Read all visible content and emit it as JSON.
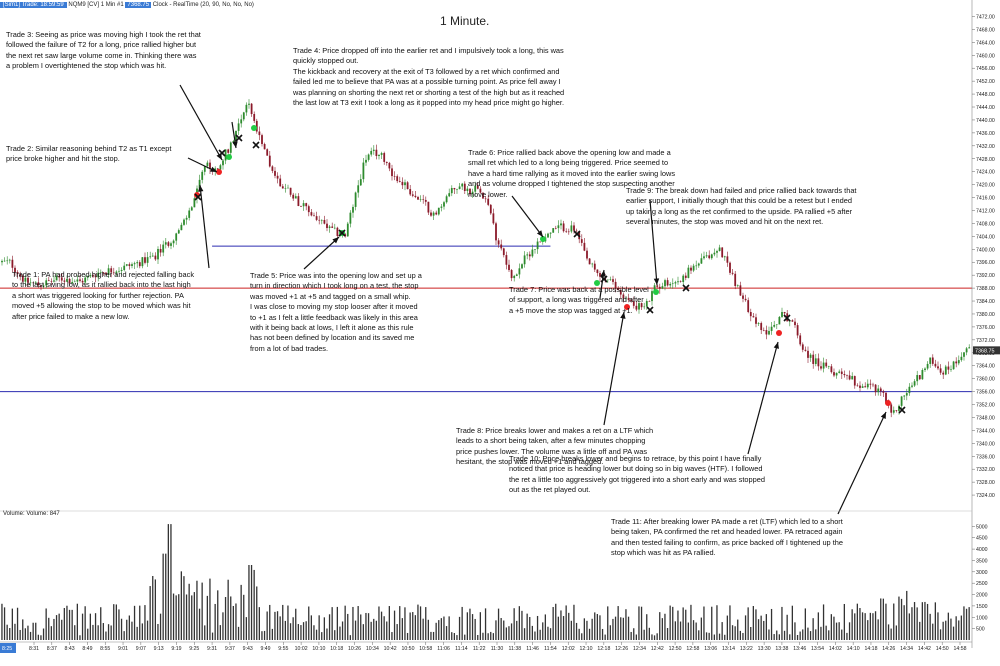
{
  "header": {
    "symbol": "[Sim1] Trade: 18:59:59",
    "instrument": "NQM9 [CV]  1 Min  #1",
    "price_tag": "7368.75",
    "info": "Clock - RealTime   (20, 90, No, No, No)"
  },
  "chart_data": {
    "type": "candlestick",
    "title": "1 Minute.",
    "y_ticks": [
      "7472.00",
      "7468.00",
      "7464.00",
      "7460.00",
      "7456.00",
      "7452.00",
      "7448.00",
      "7444.00",
      "7440.00",
      "7436.00",
      "7432.00",
      "7428.00",
      "7424.00",
      "7420.00",
      "7416.00",
      "7412.00",
      "7408.00",
      "7404.00",
      "7400.00",
      "7396.00",
      "7392.00",
      "7388.00",
      "7384.00",
      "7380.00",
      "7376.00",
      "7372.00",
      "7368.00",
      "7364.00",
      "7360.00",
      "7356.00",
      "7352.00",
      "7348.00",
      "7344.00",
      "7340.00",
      "7336.00",
      "7332.00",
      "7328.00",
      "7324.00"
    ],
    "ylim": [
      7320,
      7474
    ],
    "last_price": "7368.75",
    "x_ticks": [
      "8:31",
      "8:37",
      "8:43",
      "8:49",
      "8:55",
      "9:01",
      "9:07",
      "9:13",
      "9:19",
      "9:25",
      "9:31",
      "9:37",
      "9:43",
      "9:49",
      "9:55",
      "10:02",
      "10:10",
      "10:18",
      "10:26",
      "10:34",
      "10:42",
      "10:50",
      "10:58",
      "11:06",
      "11:14",
      "11:22",
      "11:30",
      "11:38",
      "11:46",
      "11:54",
      "12:02",
      "12:10",
      "12:18",
      "12:26",
      "12:34",
      "12:42",
      "12:50",
      "12:58",
      "13:06",
      "13:14",
      "13:22",
      "13:30",
      "13:38",
      "13:46",
      "13:54",
      "14:02",
      "14:10",
      "14:18",
      "14:26",
      "14:34",
      "14:42",
      "14:50",
      "14:58"
    ],
    "first_tick_label": "8:25",
    "price_path": [
      [
        0,
        7396
      ],
      [
        10,
        7396
      ],
      [
        20,
        7392
      ],
      [
        25,
        7390
      ],
      [
        40,
        7389
      ],
      [
        60,
        7391
      ],
      [
        80,
        7390
      ],
      [
        100,
        7393
      ],
      [
        120,
        7394
      ],
      [
        140,
        7396
      ],
      [
        155,
        7398
      ],
      [
        168,
        7402
      ],
      [
        180,
        7406
      ],
      [
        190,
        7412
      ],
      [
        197,
        7418
      ],
      [
        205,
        7426
      ],
      [
        215,
        7424
      ],
      [
        222,
        7428
      ],
      [
        230,
        7432
      ],
      [
        240,
        7440
      ],
      [
        248,
        7446
      ],
      [
        255,
        7438
      ],
      [
        262,
        7432
      ],
      [
        270,
        7426
      ],
      [
        280,
        7420
      ],
      [
        290,
        7418
      ],
      [
        300,
        7414
      ],
      [
        315,
        7410
      ],
      [
        330,
        7406
      ],
      [
        345,
        7404
      ],
      [
        355,
        7416
      ],
      [
        365,
        7428
      ],
      [
        375,
        7430
      ],
      [
        385,
        7428
      ],
      [
        395,
        7422
      ],
      [
        405,
        7420
      ],
      [
        415,
        7416
      ],
      [
        425,
        7414
      ],
      [
        435,
        7410
      ],
      [
        445,
        7416
      ],
      [
        460,
        7420
      ],
      [
        470,
        7418
      ],
      [
        478,
        7420
      ],
      [
        488,
        7414
      ],
      [
        496,
        7404
      ],
      [
        505,
        7398
      ],
      [
        512,
        7390
      ],
      [
        520,
        7395
      ],
      [
        532,
        7400
      ],
      [
        545,
        7404
      ],
      [
        560,
        7407
      ],
      [
        575,
        7406
      ],
      [
        588,
        7396
      ],
      [
        598,
        7392
      ],
      [
        610,
        7390
      ],
      [
        622,
        7386
      ],
      [
        632,
        7383
      ],
      [
        645,
        7382
      ],
      [
        655,
        7388
      ],
      [
        668,
        7390
      ],
      [
        680,
        7390
      ],
      [
        690,
        7394
      ],
      [
        700,
        7396
      ],
      [
        710,
        7398
      ],
      [
        720,
        7400
      ],
      [
        730,
        7394
      ],
      [
        740,
        7386
      ],
      [
        752,
        7380
      ],
      [
        762,
        7374
      ],
      [
        772,
        7376
      ],
      [
        782,
        7380
      ],
      [
        792,
        7378
      ],
      [
        802,
        7370
      ],
      [
        812,
        7366
      ],
      [
        822,
        7364
      ],
      [
        832,
        7362
      ],
      [
        845,
        7362
      ],
      [
        858,
        7358
      ],
      [
        870,
        7358
      ],
      [
        882,
        7356
      ],
      [
        892,
        7348
      ],
      [
        902,
        7354
      ],
      [
        912,
        7358
      ],
      [
        922,
        7362
      ],
      [
        932,
        7366
      ],
      [
        942,
        7362
      ],
      [
        952,
        7364
      ],
      [
        962,
        7368
      ],
      [
        970,
        7370
      ]
    ],
    "volume_ticks": [
      "5000",
      "4500",
      "4000",
      "3500",
      "3000",
      "2500",
      "2000",
      "1500",
      "1000",
      "500"
    ],
    "volume_label": "Volume: Volume: 847",
    "lines": [
      {
        "price": 7401,
        "color": "#2c2cb0",
        "from_time": "9:31",
        "to_time": "11:54"
      },
      {
        "price": 7388,
        "color": "#cc2222",
        "from_time": "8:25",
        "to_time": "14:58"
      },
      {
        "price": 7356,
        "color": "#2c2cb0",
        "from_time": "8:25",
        "to_time": "14:58"
      }
    ],
    "colors": {
      "up": "#2e8b2e",
      "down": "#8b1a2a",
      "long_entry": "#22cc44",
      "short_entry": "#ee2222",
      "exit": "#111111"
    }
  },
  "annotations": {
    "trade1": "Trade 1:  PA had probed higher and rejected falling back\nto the last swing low, as it rallied back into the last high\na short was triggered looking for further rejection.  PA\nmoved +5 allowing the stop to be moved which was hit\nafter price failed to make a new low.",
    "trade2": "Trade 2:  Similar reasoning behind T2 as T1 except\nprice broke higher and hit the stop.",
    "trade3": "Trade 3:  Seeing as price was moving high I took the ret that\nfollowed the failure of T2 for a long, price rallied higher but\nthe next ret saw large volume come in.  Thinking there was\na problem I overtightened the stop which was hit.",
    "trade4": "Trade 4:  Price dropped off into the earlier ret and I impulsively took a long, this was\nquickly stopped out.\nThe kickback and recovery at the exit of T3 followed by a ret which confirmed and\nfailed led me to believe that PA was at a possible turning point.  As price fell away I\nwas planning on shorting the next ret or shorting a test of the high but as it reached\nthe last low at T3 exit I took a long as it popped into my head price might go higher.",
    "trade5": "Trade 5:  Price was into the opening low and set up a\nturn in direction which I took long on a test, the stop\nwas moved +1 at +5 and tagged on a small whip.\nI was close to moving my stop looser after it moved\nto +1 as I felt a little feedback was likely in this area\nwith it being back at lows, I left it alone as this rule\nhas not been defined by location and its saved me\nfrom a lot of bad trades.",
    "trade6": "Trade 6:  Price rallied back above the opening low and made a\nsmall ret which led to a long being triggered.  Price seemed to\nhave a hard time rallying as it moved into the earlier swing lows\nand as volume dropped I tightened the stop suspecting another\nmove lower.",
    "trade7": "Trade 7:  Price was back at a possible level\nof support, a long was triggered and after\na +5 move the stop was tagged at +1.",
    "trade8": "Trade 8:  Price breaks lower and makes a ret on a LTF which\nleads to a short being taken, after a few minutes chopping\nprice pushes lower.  The volume was a little off and PA was\nhesitant, the stop was moved +1 and tagged.",
    "trade9": "Trade 9:  The break down had failed and price rallied back towards that\nearlier support, I initially though that this could be a retest but I ended\nup taking a long as the ret confirmed to the upside.  PA rallied +5 after\nseveral minutes, the stop was moved and hit on the next ret.",
    "trade10": "Trade 10:  Price breaks lower and begins to retrace, by this point I have finally\nnoticed that price is heading lower but doing so in big waves (HTF).  I followed\nthe ret a little too aggressively got triggered into a short early and was stopped\nout as the ret played out.",
    "trade11": "Trade 11:  After breaking lower PA made a ret (LTF) which led to a short\nbeing taken, PA confirmed the ret and headed lower.  PA retraced again\nand then tested failing to confirm, as price backed off I tightened up the\nstop which was hit as PA rallied."
  }
}
